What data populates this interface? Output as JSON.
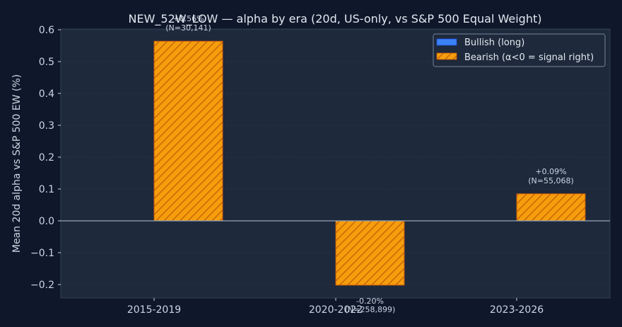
{
  "chart_data": {
    "type": "bar",
    "title": "NEW_52W_LOW — alpha by era (20d, US-only, vs S&P 500 Equal Weight)",
    "xlabel": "",
    "ylabel": "Mean 20d alpha vs S&P 500 EW (%)",
    "ylim": [
      -0.24,
      0.6
    ],
    "yticks": [
      -0.2,
      -0.1,
      0.0,
      0.1,
      0.2,
      0.3,
      0.4,
      0.5,
      0.6
    ],
    "ytick_labels": [
      "−0.2",
      "−0.1",
      "0.0",
      "0.1",
      "0.2",
      "0.3",
      "0.4",
      "0.5",
      "0.6"
    ],
    "categories": [
      "2015-2019",
      "2020-2022",
      "2023-2026"
    ],
    "grid": true,
    "legend_position": "top-right",
    "series": [
      {
        "name": "Bullish (long)",
        "color": "#3b82f6",
        "hatch": false,
        "values": [
          null,
          null,
          null
        ],
        "labels": [
          "",
          "",
          ""
        ]
      },
      {
        "name": "Bearish (α<0 = signal right)",
        "color": "#f59e0b",
        "edge_color": "#c2570c",
        "hatch": true,
        "values": [
          0.564,
          -0.202,
          0.085
        ],
        "labels": [
          "+0.56%",
          "-0.20%",
          "+0.09%"
        ],
        "counts": [
          "(N=30,141)",
          "(N=258,899)",
          "(N=55,068)"
        ]
      }
    ]
  },
  "colors": {
    "background": "#0f172a",
    "plot_background": "#1e293b",
    "zero_line": "#94a3b8"
  }
}
